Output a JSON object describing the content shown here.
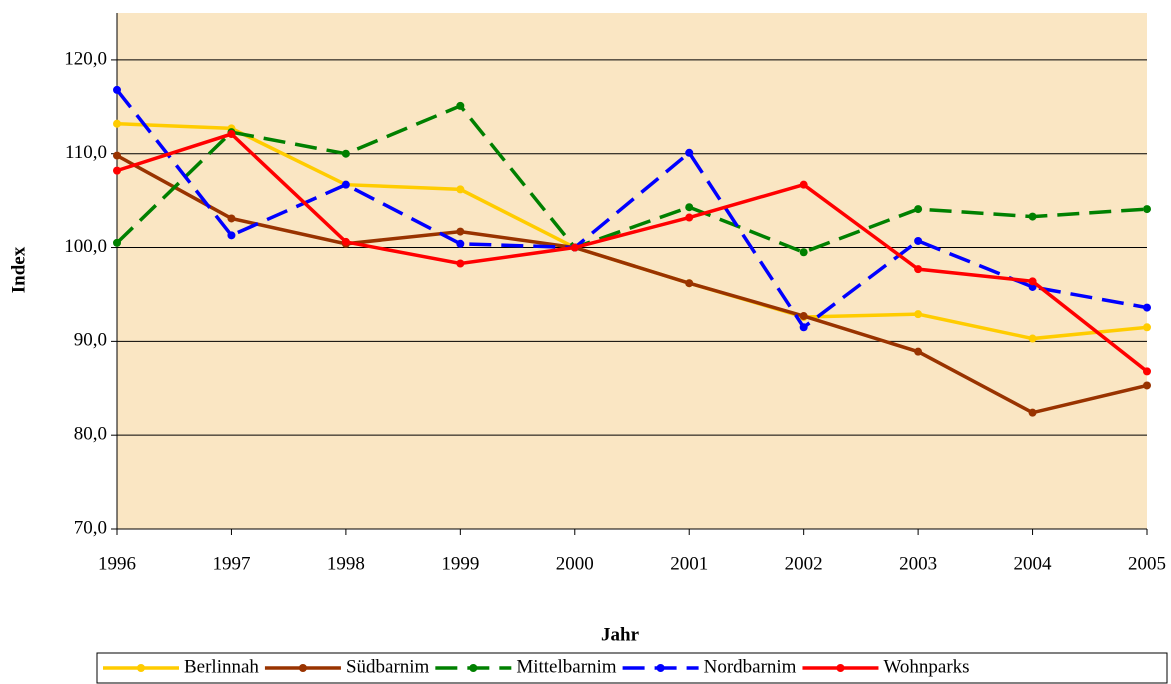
{
  "chart_data": {
    "type": "line",
    "x_label": "Jahr",
    "y_label": "Index",
    "categories": [
      "1996",
      "1997",
      "1998",
      "1999",
      "2000",
      "2001",
      "2002",
      "2003",
      "2004",
      "2005"
    ],
    "ylim": [
      70,
      125
    ],
    "yticks": [
      {
        "value": 70,
        "label": "70,0"
      },
      {
        "value": 80,
        "label": "80,0"
      },
      {
        "value": 90,
        "label": "90,0"
      },
      {
        "value": 100,
        "label": "100,0"
      },
      {
        "value": 110,
        "label": "110,0"
      },
      {
        "value": 120,
        "label": "120,0"
      }
    ],
    "grid": true,
    "legend": "bottom",
    "background": "#fae6c3",
    "series": [
      {
        "name": "Berlinnah",
        "color": "#ffcc00",
        "dashed": false,
        "values": [
          113.2,
          112.7,
          106.7,
          106.2,
          100,
          96.2,
          92.6,
          92.9,
          90.3,
          91.5
        ]
      },
      {
        "name": "Südbarnim",
        "color": "#993300",
        "dashed": false,
        "values": [
          109.8,
          103.1,
          100.4,
          101.7,
          100,
          96.2,
          92.7,
          88.9,
          82.4,
          85.3
        ]
      },
      {
        "name": "Mittelbarnim",
        "color": "#008000",
        "dashed": true,
        "values": [
          100.5,
          112.3,
          110.0,
          115.1,
          100,
          104.3,
          99.5,
          104.1,
          103.3,
          104.1
        ]
      },
      {
        "name": "Nordbarnim",
        "color": "#0000ff",
        "dashed": true,
        "values": [
          116.8,
          101.3,
          106.7,
          100.4,
          100,
          110.1,
          91.5,
          100.7,
          95.8,
          93.6
        ]
      },
      {
        "name": "Wohnparks",
        "color": "#ff0000",
        "dashed": false,
        "values": [
          108.2,
          112.1,
          100.6,
          98.3,
          100,
          103.2,
          106.7,
          97.7,
          96.4,
          86.8
        ]
      }
    ]
  }
}
